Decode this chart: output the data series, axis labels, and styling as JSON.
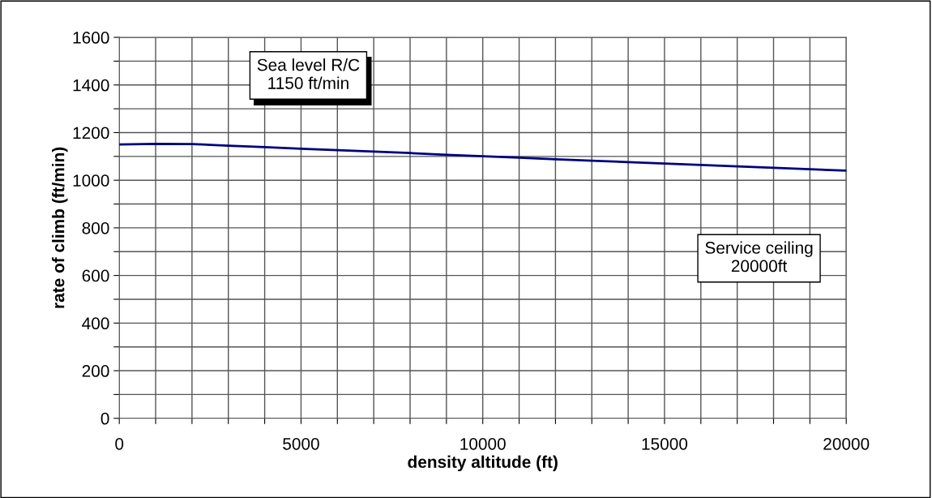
{
  "chart_data": {
    "type": "line",
    "xlabel": "density altitude (ft)",
    "ylabel": "rate of climb (ft/min)",
    "x": [
      0,
      1000,
      2000,
      3000,
      4000,
      5000,
      6000,
      7000,
      8000,
      9000,
      10000,
      11000,
      12000,
      13000,
      14000,
      15000,
      16000,
      17000,
      18000,
      19000,
      20000
    ],
    "series": [
      {
        "color": "#000080",
        "values": [
          1150,
          1153,
          1152,
          1145,
          1139,
          1132,
          1126,
          1120,
          1114,
          1107,
          1101,
          1095,
          1088,
          1082,
          1076,
          1070,
          1064,
          1058,
          1052,
          1046,
          1040
        ]
      }
    ],
    "xlim": [
      0,
      20000
    ],
    "ylim": [
      0,
      1600
    ],
    "xticks": [
      0,
      {
        "value": 1000,
        "label": null
      },
      {
        "value": 2000,
        "label": null
      },
      {
        "value": 3000,
        "label": null
      },
      {
        "value": 4000,
        "label": null
      },
      5000,
      {
        "value": 6000,
        "label": null
      },
      {
        "value": 7000,
        "label": null
      },
      {
        "value": 8000,
        "label": null
      },
      {
        "value": 9000,
        "label": null
      },
      10000,
      {
        "value": 11000,
        "label": null
      },
      {
        "value": 12000,
        "label": null
      },
      {
        "value": 13000,
        "label": null
      },
      {
        "value": 14000,
        "label": null
      },
      15000,
      {
        "value": 16000,
        "label": null
      },
      {
        "value": 17000,
        "label": null
      },
      {
        "value": 18000,
        "label": null
      },
      {
        "value": 19000,
        "label": null
      },
      20000
    ],
    "yticks": [
      0,
      {
        "value": 100,
        "label": null
      },
      200,
      {
        "value": 300,
        "label": null
      },
      400,
      {
        "value": 500,
        "label": null
      },
      600,
      {
        "value": 700,
        "label": null
      },
      800,
      {
        "value": 900,
        "label": null
      },
      1000,
      {
        "value": 1100,
        "label": null
      },
      1200,
      {
        "value": 1300,
        "label": null
      },
      1400,
      {
        "value": 1500,
        "label": null
      },
      1600
    ],
    "grid": true,
    "marker": "none",
    "line_style": "solid",
    "annotations": [
      "Sea level R/C\n1150 ft/min",
      "Service ceiling\n20000ft"
    ]
  }
}
